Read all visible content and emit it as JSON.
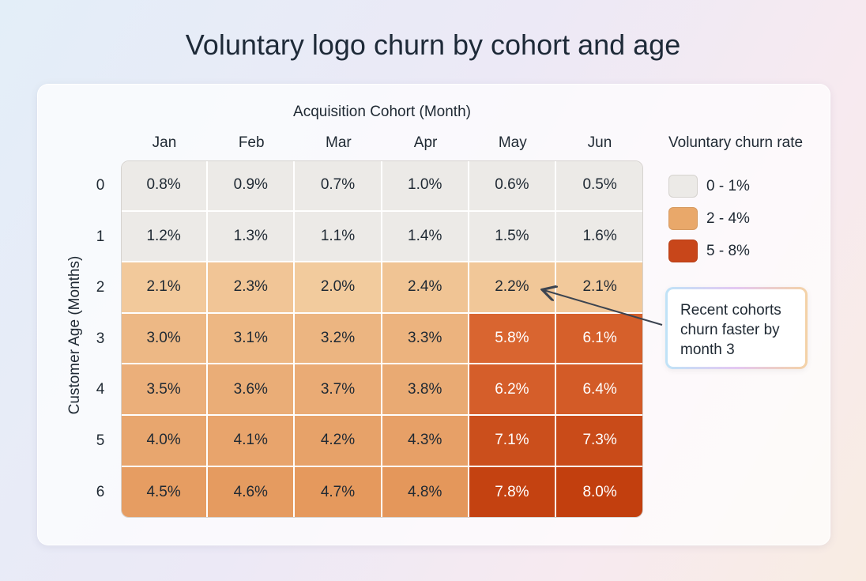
{
  "chart_data": {
    "type": "heatmap",
    "title": "Voluntary logo churn by cohort and age",
    "xlabel": "Acquisition Cohort (Month)",
    "ylabel": "Customer Age (Months)",
    "x_categories": [
      "Jan",
      "Feb",
      "Mar",
      "Apr",
      "May",
      "Jun"
    ],
    "y_categories": [
      "0",
      "1",
      "2",
      "3",
      "4",
      "5",
      "6"
    ],
    "unit": "%",
    "values": [
      [
        0.8,
        0.9,
        0.7,
        1.0,
        0.6,
        0.5
      ],
      [
        1.2,
        1.3,
        1.1,
        1.4,
        1.5,
        1.6
      ],
      [
        2.1,
        2.3,
        2.0,
        2.4,
        2.2,
        2.1
      ],
      [
        3.0,
        3.1,
        3.2,
        3.3,
        5.8,
        6.1
      ],
      [
        3.5,
        3.6,
        3.7,
        3.8,
        6.2,
        6.4
      ],
      [
        4.0,
        4.1,
        4.2,
        4.3,
        7.1,
        7.3
      ],
      [
        4.5,
        4.6,
        4.7,
        4.8,
        7.8,
        8.0
      ]
    ],
    "legend": {
      "title": "Voluntary churn rate",
      "placement": "right",
      "bins": [
        {
          "label": "0 - 1%",
          "color": "#eceae7"
        },
        {
          "label": "2 - 4%",
          "color": "#e9a86a"
        },
        {
          "label": "5 - 8%",
          "color": "#c8461a"
        }
      ]
    },
    "annotation": {
      "text": "Recent cohorts churn faster by month 3",
      "target": "May, age 2"
    }
  }
}
